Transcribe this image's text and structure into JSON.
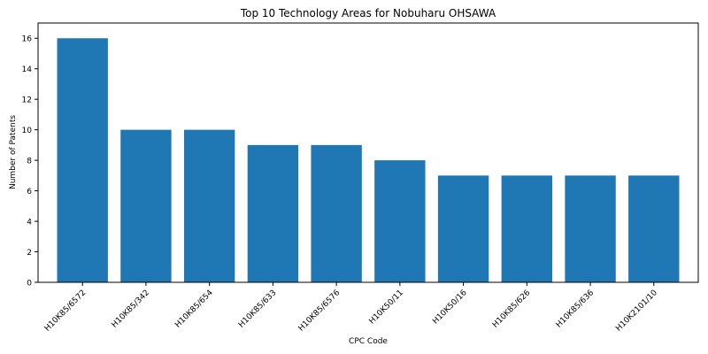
{
  "chart_data": {
    "type": "bar",
    "title": "Top 10 Technology Areas for Nobuharu OHSAWA",
    "xlabel": "CPC Code",
    "ylabel": "Number of Patents",
    "categories": [
      "H10K85/6572",
      "H10K85/342",
      "H10K85/654",
      "H10K85/633",
      "H10K85/6576",
      "H10K50/11",
      "H10K50/16",
      "H10K85/626",
      "H10K85/636",
      "H10K2101/10"
    ],
    "values": [
      16,
      10,
      10,
      9,
      9,
      8,
      7,
      7,
      7,
      7
    ],
    "ylim": [
      0,
      17
    ],
    "yticks": [
      0,
      2,
      4,
      6,
      8,
      10,
      12,
      14,
      16
    ],
    "grid": false,
    "bar_color": "#1f77b4"
  }
}
